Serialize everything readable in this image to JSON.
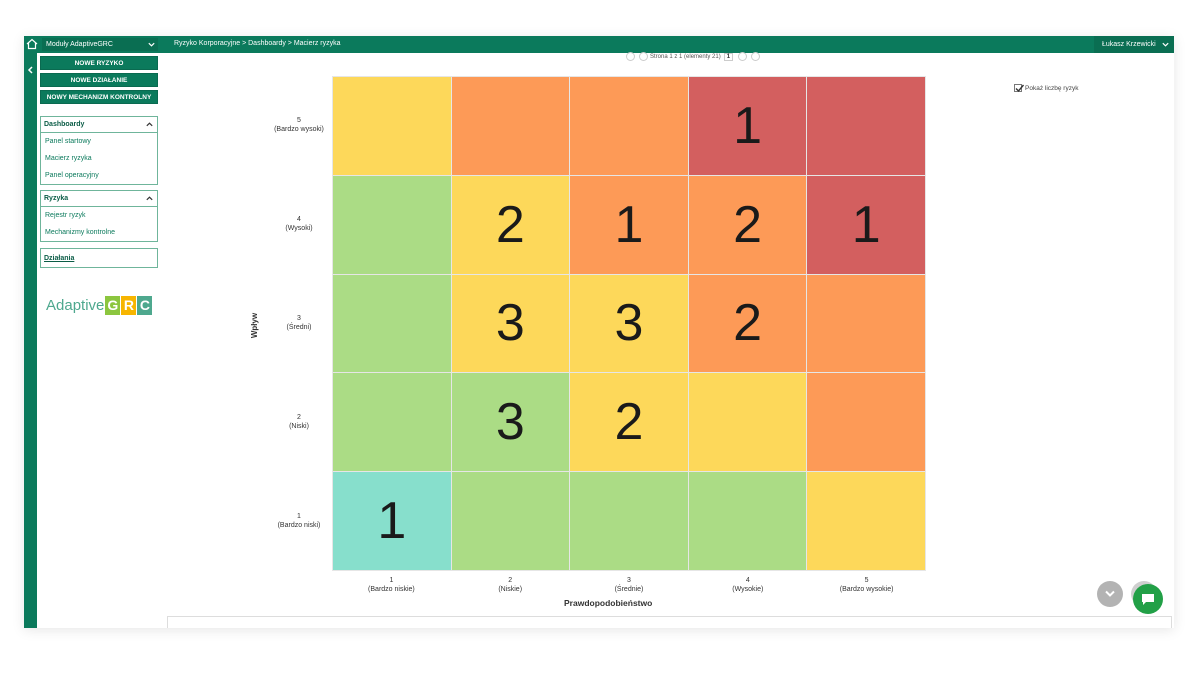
{
  "topbar": {
    "module_label": "Moduły AdaptiveGRC",
    "breadcrumb": "Ryzyko Korporacyjne > Dashboardy > Macierz ryzyka",
    "user_name": "Łukasz Krzewicki"
  },
  "actions": {
    "new_risk": "NOWE RYZYKO",
    "new_action": "NOWE DZIAŁANIE",
    "new_control": "NOWY MECHANIZM KONTROLNY"
  },
  "sidebar": {
    "dashboards": {
      "title": "Dashboardy",
      "items": [
        "Panel startowy",
        "Macierz ryzyka",
        "Panel operacyjny"
      ]
    },
    "risks": {
      "title": "Ryzyka",
      "items": [
        "Rejestr ryzyk",
        "Mechanizmy kontrolne"
      ]
    },
    "actions_link": "Działania"
  },
  "logo": {
    "text": "Adaptive",
    "letters": [
      "G",
      "R",
      "C"
    ]
  },
  "pager": {
    "text": "Strona 1 z 1 (elementy 21)",
    "page": "1"
  },
  "show_count": {
    "label": "Pokaż liczbę ryzyk",
    "checked": true
  },
  "matrix": {
    "x_title": "Prawdopodobieństwo",
    "y_title": "Wpływ",
    "x_levels": [
      {
        "num": "1",
        "name": "(Bardzo niskie)"
      },
      {
        "num": "2",
        "name": "(Niskie)"
      },
      {
        "num": "3",
        "name": "(Średnie)"
      },
      {
        "num": "4",
        "name": "(Wysokie)"
      },
      {
        "num": "5",
        "name": "(Bardzo wysokie)"
      }
    ],
    "y_levels_top_to_bottom": [
      {
        "num": "5",
        "name": "(Bardzo wysoki)"
      },
      {
        "num": "4",
        "name": "(Wysoki)"
      },
      {
        "num": "3",
        "name": "(Średni)"
      },
      {
        "num": "2",
        "name": "(Niski)"
      },
      {
        "num": "1",
        "name": "(Bardzo niski)"
      }
    ],
    "colors": {
      "teal": "#87dfcc",
      "green": "#abdc85",
      "yellow": "#fdd85a",
      "orange": "#fd9a57",
      "red": "#d35f5f"
    },
    "rows_top_to_bottom": [
      [
        {
          "c": "yellow",
          "n": ""
        },
        {
          "c": "orange",
          "n": ""
        },
        {
          "c": "orange",
          "n": ""
        },
        {
          "c": "red",
          "n": "1"
        },
        {
          "c": "red",
          "n": ""
        }
      ],
      [
        {
          "c": "green",
          "n": ""
        },
        {
          "c": "yellow",
          "n": "2"
        },
        {
          "c": "orange",
          "n": "1"
        },
        {
          "c": "orange",
          "n": "2"
        },
        {
          "c": "red",
          "n": "1"
        }
      ],
      [
        {
          "c": "green",
          "n": ""
        },
        {
          "c": "yellow",
          "n": "3"
        },
        {
          "c": "yellow",
          "n": "3"
        },
        {
          "c": "orange",
          "n": "2"
        },
        {
          "c": "orange",
          "n": ""
        }
      ],
      [
        {
          "c": "green",
          "n": ""
        },
        {
          "c": "green",
          "n": "3"
        },
        {
          "c": "yellow",
          "n": "2"
        },
        {
          "c": "yellow",
          "n": ""
        },
        {
          "c": "orange",
          "n": ""
        }
      ],
      [
        {
          "c": "teal",
          "n": "1"
        },
        {
          "c": "green",
          "n": ""
        },
        {
          "c": "green",
          "n": ""
        },
        {
          "c": "green",
          "n": ""
        },
        {
          "c": "yellow",
          "n": ""
        }
      ]
    ]
  },
  "brand_colors": {
    "primary": "#0b7a5c",
    "chat": "#22a047"
  }
}
